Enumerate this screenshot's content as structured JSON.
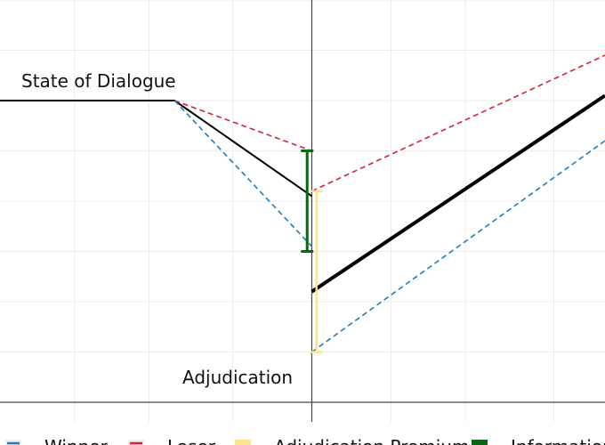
{
  "chart_data": {
    "type": "line",
    "title": "",
    "xlabel": "",
    "ylabel": "",
    "grid": true,
    "legend_position": "bottom",
    "annotations": {
      "state_of_dialogue": "State of Dialogue",
      "adjudication": "Adjudication"
    },
    "legend": [
      {
        "key": "winner",
        "label": "Winner",
        "color": "#1f7db8",
        "style": "dashed"
      },
      {
        "key": "loser",
        "label": "Loser",
        "color": "#d6223a",
        "style": "dashed"
      },
      {
        "key": "premium",
        "label": "Adjudication Premium",
        "color": "#fce48c",
        "style": "bar"
      },
      {
        "key": "information",
        "label": "Information",
        "color": "#0a6614",
        "style": "bar"
      }
    ],
    "series": [
      {
        "key": "main-before",
        "color": "#000000",
        "style": "solid",
        "points": [
          [
            0,
            6.0
          ],
          [
            3.75,
            6.0
          ],
          [
            6.7,
            4.1
          ]
        ]
      },
      {
        "key": "main-after",
        "color": "#000000",
        "style": "thick",
        "points": [
          [
            6.7,
            2.2
          ],
          [
            13.0,
            6.1
          ]
        ]
      },
      {
        "key": "loser-before",
        "color": "#d6223a",
        "style": "dashed",
        "points": [
          [
            3.75,
            6.0
          ],
          [
            6.7,
            5.0
          ]
        ]
      },
      {
        "key": "loser-after",
        "color": "#d6223a",
        "style": "dashed",
        "points": [
          [
            6.7,
            4.2
          ],
          [
            13.0,
            6.9
          ]
        ]
      },
      {
        "key": "winner-before",
        "color": "#1f7db8",
        "style": "dashed",
        "points": [
          [
            3.75,
            6.0
          ],
          [
            6.7,
            3.1
          ]
        ]
      },
      {
        "key": "winner-after",
        "color": "#1f7db8",
        "style": "dashed",
        "points": [
          [
            6.7,
            1.0
          ],
          [
            13.0,
            5.2
          ]
        ]
      }
    ],
    "error_bars": [
      {
        "key": "information",
        "x": 6.6,
        "low": 3.0,
        "high": 5.0,
        "color": "#0a6614"
      },
      {
        "key": "premium",
        "x": 6.8,
        "low": 1.0,
        "high": 4.2,
        "color": "#fce48c"
      }
    ],
    "xlim": [
      0,
      13
    ],
    "ylim": [
      0,
      8
    ],
    "xgrid": [
      1.6,
      3.2,
      5.0,
      6.7,
      8.4,
      10.0,
      11.9
    ],
    "ygrid": [
      1,
      2,
      3,
      4,
      5,
      6,
      7,
      8
    ]
  }
}
